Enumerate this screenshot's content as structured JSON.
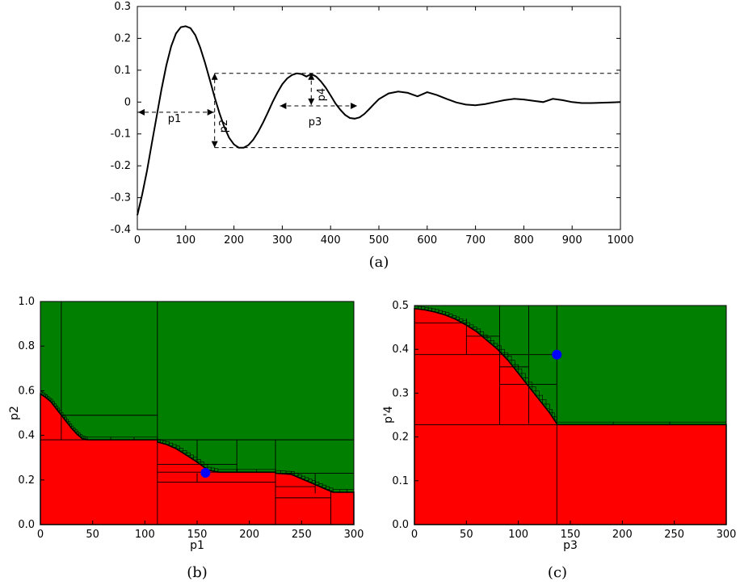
{
  "colors": {
    "curve": "#000000",
    "safe": "#007f00",
    "unsafe": "#ff0000",
    "marker": "#0000ff",
    "grid_lines": "#000000"
  },
  "chart_data": [
    {
      "panel": "a",
      "type": "line",
      "caption": "(a)",
      "xlim": [
        0,
        1000
      ],
      "ylim": [
        -0.4,
        0.3
      ],
      "x_ticks": [
        "0",
        "100",
        "200",
        "300",
        "400",
        "500",
        "600",
        "700",
        "800",
        "900",
        "1000"
      ],
      "y_ticks": [
        "-0.4",
        "-0.3",
        "-0.2",
        "-0.1",
        "0",
        "0.1",
        "0.2",
        "0.3"
      ],
      "series": [
        {
          "x": [
            0,
            10,
            20,
            30,
            40,
            50,
            60,
            70,
            80,
            90,
            100,
            110,
            120,
            130,
            140,
            150,
            160,
            170,
            180,
            190,
            200,
            210,
            220,
            230,
            240,
            250,
            260,
            270,
            280,
            290,
            300,
            310,
            320,
            330,
            340,
            350,
            360,
            370,
            380,
            390,
            400,
            410,
            420,
            430,
            440,
            450,
            460,
            470,
            480,
            490,
            500,
            520,
            540,
            560,
            580,
            600,
            620,
            640,
            660,
            680,
            700,
            720,
            740,
            760,
            780,
            800,
            820,
            840,
            860,
            880,
            900,
            920,
            940,
            960,
            980,
            1000
          ],
          "y": [
            -0.355,
            -0.29,
            -0.215,
            -0.13,
            -0.045,
            0.04,
            0.115,
            0.175,
            0.215,
            0.235,
            0.238,
            0.232,
            0.21,
            0.172,
            0.124,
            0.07,
            0.015,
            -0.035,
            -0.078,
            -0.112,
            -0.133,
            -0.143,
            -0.143,
            -0.135,
            -0.118,
            -0.094,
            -0.065,
            -0.033,
            0.0,
            0.03,
            0.056,
            0.074,
            0.085,
            0.09,
            0.088,
            0.08,
            0.088,
            0.08,
            0.065,
            0.045,
            0.021,
            -0.004,
            -0.024,
            -0.04,
            -0.05,
            -0.052,
            -0.048,
            -0.037,
            -0.022,
            -0.006,
            0.009,
            0.027,
            0.033,
            0.029,
            0.018,
            0.031,
            0.022,
            0.01,
            -0.001,
            -0.008,
            -0.01,
            -0.006,
            0.0,
            0.006,
            0.01,
            0.008,
            0.004,
            0.0,
            0.01,
            0.006,
            0.0,
            -0.003,
            -0.003,
            -0.002,
            -0.001,
            0.0
          ]
        }
      ],
      "annotations": [
        "p1",
        "p2",
        "p3",
        "p4"
      ],
      "dashed_levels": [
        0.09,
        -0.143,
        -0.032
      ]
    },
    {
      "panel": "b",
      "type": "heatmap",
      "caption": "(b)",
      "xlabel": "p1",
      "ylabel": "p2",
      "xlim": [
        0,
        300
      ],
      "ylim": [
        0.0,
        1.0
      ],
      "x_ticks": [
        "0",
        "50",
        "100",
        "150",
        "200",
        "250",
        "300"
      ],
      "y_ticks": [
        "0.0",
        "0.2",
        "0.4",
        "0.6",
        "0.8",
        "1.0"
      ],
      "boundary": [
        [
          0,
          0.585
        ],
        [
          5,
          0.57
        ],
        [
          10,
          0.55
        ],
        [
          15,
          0.52
        ],
        [
          20,
          0.49
        ],
        [
          25,
          0.46
        ],
        [
          30,
          0.43
        ],
        [
          35,
          0.405
        ],
        [
          40,
          0.385
        ],
        [
          45,
          0.38
        ],
        [
          112,
          0.38
        ],
        [
          112,
          0.37
        ],
        [
          120,
          0.36
        ],
        [
          130,
          0.34
        ],
        [
          140,
          0.31
        ],
        [
          150,
          0.28
        ],
        [
          160,
          0.245
        ],
        [
          170,
          0.235
        ],
        [
          225,
          0.235
        ],
        [
          225,
          0.23
        ],
        [
          240,
          0.225
        ],
        [
          250,
          0.205
        ],
        [
          260,
          0.185
        ],
        [
          270,
          0.165
        ],
        [
          280,
          0.145
        ],
        [
          300,
          0.145
        ]
      ],
      "marker": {
        "x": 158,
        "y": 0.232
      }
    },
    {
      "panel": "c",
      "type": "heatmap",
      "caption": "(c)",
      "xlabel": "p3",
      "ylabel": "p'4",
      "xlim": [
        0,
        300
      ],
      "ylim": [
        0.0,
        0.5
      ],
      "x_ticks": [
        "0",
        "50",
        "100",
        "150",
        "200",
        "250",
        "300"
      ],
      "y_ticks": [
        "0.0",
        "0.1",
        "0.2",
        "0.3",
        "0.4",
        "0.5"
      ],
      "boundary": [
        [
          0,
          0.493
        ],
        [
          10,
          0.49
        ],
        [
          20,
          0.485
        ],
        [
          30,
          0.478
        ],
        [
          40,
          0.468
        ],
        [
          50,
          0.455
        ],
        [
          60,
          0.44
        ],
        [
          70,
          0.42
        ],
        [
          80,
          0.4
        ],
        [
          90,
          0.375
        ],
        [
          100,
          0.345
        ],
        [
          110,
          0.315
        ],
        [
          120,
          0.285
        ],
        [
          130,
          0.255
        ],
        [
          137,
          0.23
        ],
        [
          137,
          0.228
        ],
        [
          300,
          0.228
        ]
      ],
      "marker": {
        "x": 137,
        "y": 0.388
      }
    }
  ]
}
